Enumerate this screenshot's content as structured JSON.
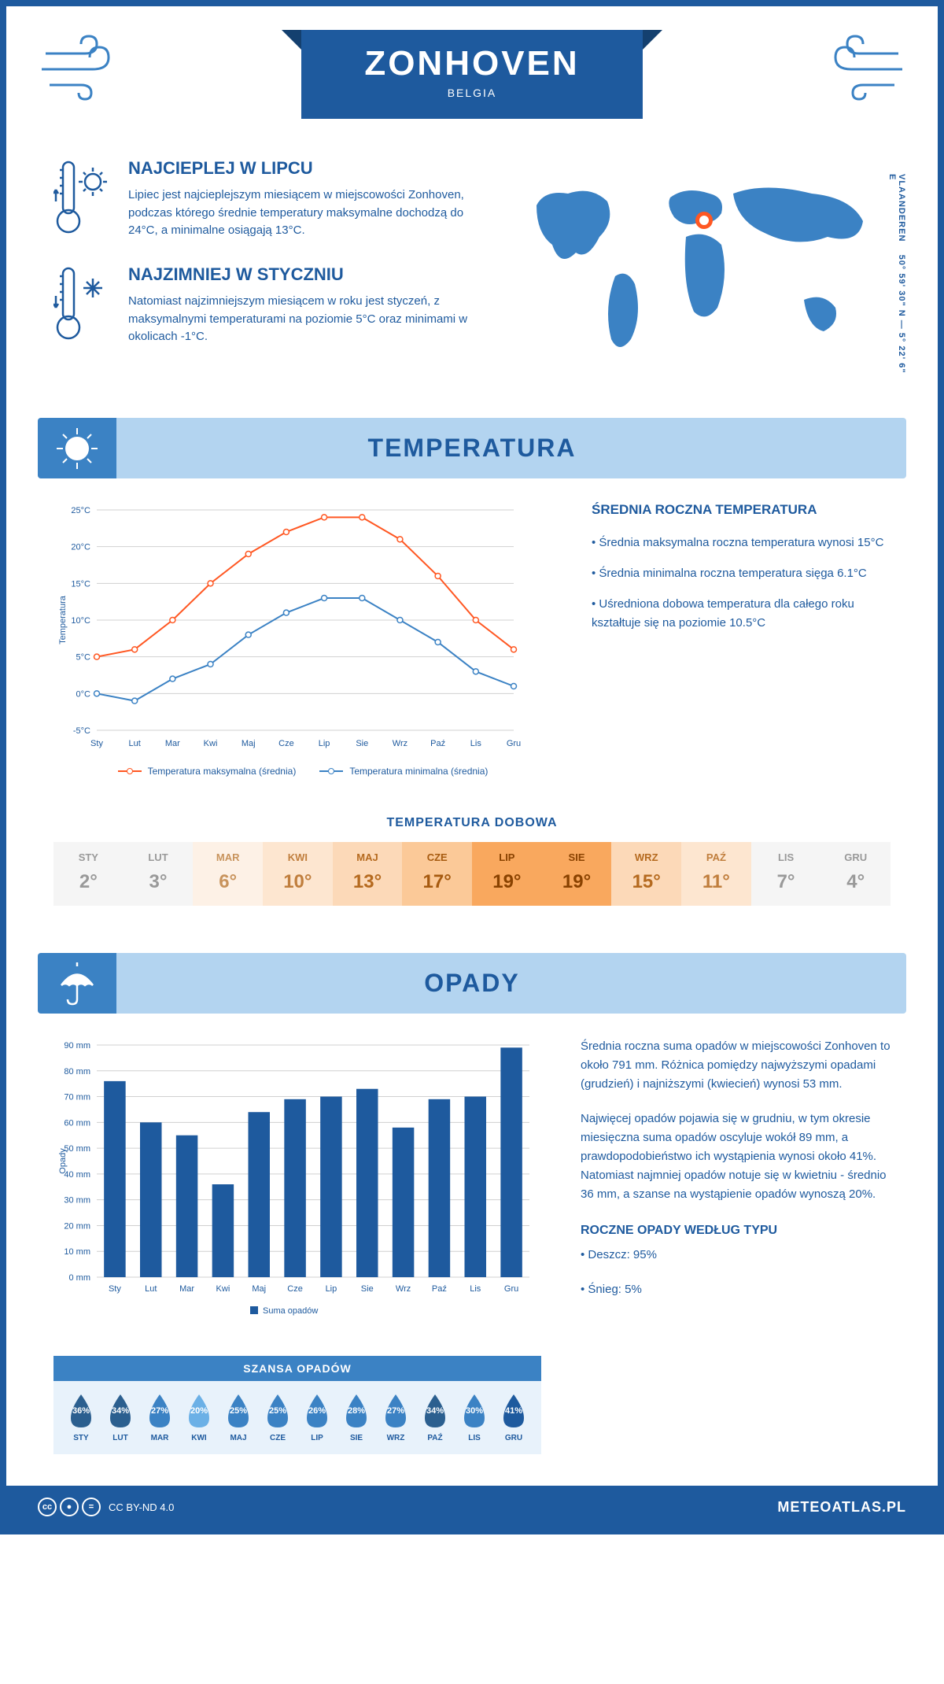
{
  "header": {
    "title": "ZONHOVEN",
    "subtitle": "BELGIA"
  },
  "coords": {
    "text": "50° 59' 30\" N — 5° 22' 6\" E",
    "region": "VLAANDEREN"
  },
  "intro": {
    "hot": {
      "title": "NAJCIEPLEJ W LIPCU",
      "text": "Lipiec jest najcieplejszym miesiącem w miejscowości Zonhoven, podczas którego średnie temperatury maksymalne dochodzą do 24°C, a minimalne osiągają 13°C."
    },
    "cold": {
      "title": "NAJZIMNIEJ W STYCZNIU",
      "text": "Natomiast najzimniejszym miesiącem w roku jest styczeń, z maksymalnymi temperaturami na poziomie 5°C oraz minimami w okolicach -1°C."
    }
  },
  "months": [
    "Sty",
    "Lut",
    "Mar",
    "Kwi",
    "Maj",
    "Cze",
    "Lip",
    "Sie",
    "Wrz",
    "Paź",
    "Lis",
    "Gru"
  ],
  "months_upper": [
    "STY",
    "LUT",
    "MAR",
    "KWI",
    "MAJ",
    "CZE",
    "LIP",
    "SIE",
    "WRZ",
    "PAŹ",
    "LIS",
    "GRU"
  ],
  "temperature": {
    "section_title": "TEMPERATURA",
    "chart": {
      "type": "line",
      "ylabel": "Temperatura",
      "ylim": [
        -5,
        25
      ],
      "ytick_step": 5,
      "max_series": {
        "label": "Temperatura maksymalna (średnia)",
        "color": "#ff5722",
        "values": [
          5,
          6,
          10,
          15,
          19,
          22,
          24,
          24,
          21,
          16,
          10,
          6
        ]
      },
      "min_series": {
        "label": "Temperatura minimalna (średnia)",
        "color": "#3b82c4",
        "values": [
          0,
          -1,
          2,
          4,
          8,
          11,
          13,
          13,
          10,
          7,
          3,
          1
        ]
      },
      "grid_color": "#d0d0d0",
      "background": "#ffffff"
    },
    "side": {
      "heading": "ŚREDNIA ROCZNA TEMPERATURA",
      "bullets": [
        "• Średnia maksymalna roczna temperatura wynosi 15°C",
        "• Średnia minimalna roczna temperatura sięga 6.1°C",
        "• Uśredniona dobowa temperatura dla całego roku kształtuje się na poziomie 10.5°C"
      ]
    },
    "daily": {
      "heading": "TEMPERATURA DOBOWA",
      "values": [
        "2°",
        "3°",
        "6°",
        "10°",
        "13°",
        "17°",
        "19°",
        "19°",
        "15°",
        "11°",
        "7°",
        "4°"
      ],
      "bg_colors": [
        "#f5f5f5",
        "#f5f5f5",
        "#fdf1e6",
        "#fde6d0",
        "#fcd9b8",
        "#fbc998",
        "#f9a85e",
        "#f9a85e",
        "#fcd9b8",
        "#fde6d0",
        "#f5f5f5",
        "#f5f5f5"
      ],
      "text_colors": [
        "#999999",
        "#999999",
        "#c8935c",
        "#c07e3d",
        "#b56a1f",
        "#a65a0f",
        "#8a4200",
        "#8a4200",
        "#b56a1f",
        "#c07e3d",
        "#999999",
        "#999999"
      ]
    }
  },
  "precipitation": {
    "section_title": "OPADY",
    "chart": {
      "type": "bar",
      "ylabel": "Opady",
      "ylim": [
        0,
        90
      ],
      "ytick_step": 10,
      "bar_color": "#1e5a9e",
      "values": [
        76,
        60,
        55,
        36,
        64,
        69,
        70,
        73,
        58,
        69,
        70,
        89
      ],
      "legend": "Suma opadów",
      "grid_color": "#d0d0d0"
    },
    "side": {
      "p1": "Średnia roczna suma opadów w miejscowości Zonhoven to około 791 mm. Różnica pomiędzy najwyższymi opadami (grudzień) i najniższymi (kwiecień) wynosi 53 mm.",
      "p2": "Najwięcej opadów pojawia się w grudniu, w tym okresie miesięczna suma opadów oscyluje wokół 89 mm, a prawdopodobieństwo ich wystąpienia wynosi około 41%. Natomiast najmniej opadów notuje się w kwietniu - średnio 36 mm, a szanse na wystąpienie opadów wynoszą 20%.",
      "type_heading": "ROCZNE OPADY WEDŁUG TYPU",
      "types": [
        "• Deszcz: 95%",
        "• Śnieg: 5%"
      ]
    },
    "chance": {
      "heading": "SZANSA OPADÓW",
      "values": [
        "36%",
        "34%",
        "27%",
        "20%",
        "25%",
        "25%",
        "26%",
        "28%",
        "27%",
        "34%",
        "30%",
        "41%"
      ],
      "drop_colors": [
        "#2b5f8f",
        "#2b5f8f",
        "#3b82c4",
        "#6bb0e6",
        "#3b82c4",
        "#3b82c4",
        "#3b82c4",
        "#3b82c4",
        "#3b82c4",
        "#2b5f8f",
        "#3b82c4",
        "#1e5a9e"
      ]
    }
  },
  "footer": {
    "license": "CC BY-ND 4.0",
    "site": "METEOATLAS.PL"
  },
  "colors": {
    "primary": "#1e5a9e",
    "light": "#b3d4f0",
    "mid": "#3b82c4",
    "accent": "#ff5722"
  }
}
